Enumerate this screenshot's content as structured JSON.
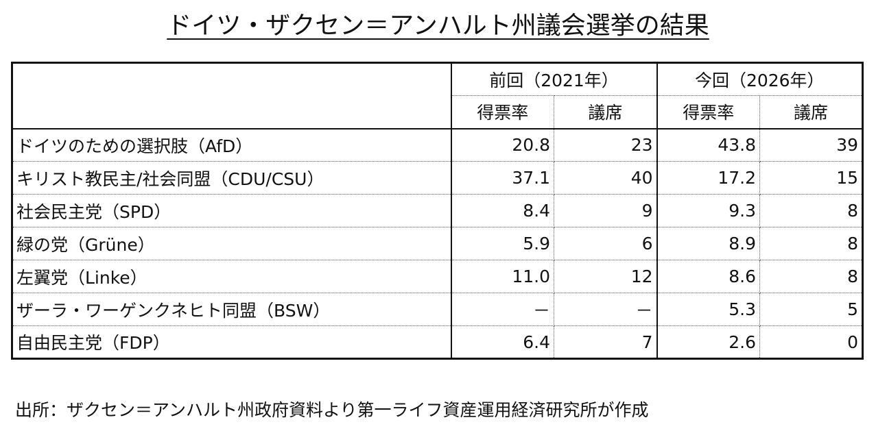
{
  "title": "ドイツ・ザクセン＝アンハルト州議会選挙の結果",
  "table": {
    "group_headers": [
      "前回（2021年）",
      "今回（2026年）"
    ],
    "sub_headers": [
      "得票率",
      "議席",
      "得票率",
      "議席"
    ],
    "rows": [
      {
        "party": "ドイツのための選択肢（AfD）",
        "prev_share": "20.8",
        "prev_seats": "23",
        "curr_share": "43.8",
        "curr_seats": "39"
      },
      {
        "party": "キリスト教民主/社会同盟（CDU/CSU）",
        "prev_share": "37.1",
        "prev_seats": "40",
        "curr_share": "17.2",
        "curr_seats": "15"
      },
      {
        "party": "社会民主党（SPD）",
        "prev_share": "8.4",
        "prev_seats": "9",
        "curr_share": "9.3",
        "curr_seats": "8"
      },
      {
        "party": "緑の党（Grüne）",
        "prev_share": "5.9",
        "prev_seats": "6",
        "curr_share": "8.9",
        "curr_seats": "8"
      },
      {
        "party": "左翼党（Linke）",
        "prev_share": "11.0",
        "prev_seats": "12",
        "curr_share": "8.6",
        "curr_seats": "8"
      },
      {
        "party": "ザーラ・ワーゲンクネヒト同盟（BSW）",
        "prev_share": "－",
        "prev_seats": "－",
        "curr_share": "5.3",
        "curr_seats": "5"
      },
      {
        "party": "自由民主党（FDP）",
        "prev_share": "6.4",
        "prev_seats": "7",
        "curr_share": "2.6",
        "curr_seats": "0"
      }
    ]
  },
  "source": "出所：ザクセン＝アンハルト州政府資料より第一ライフ資産運用経済研究所が作成"
}
